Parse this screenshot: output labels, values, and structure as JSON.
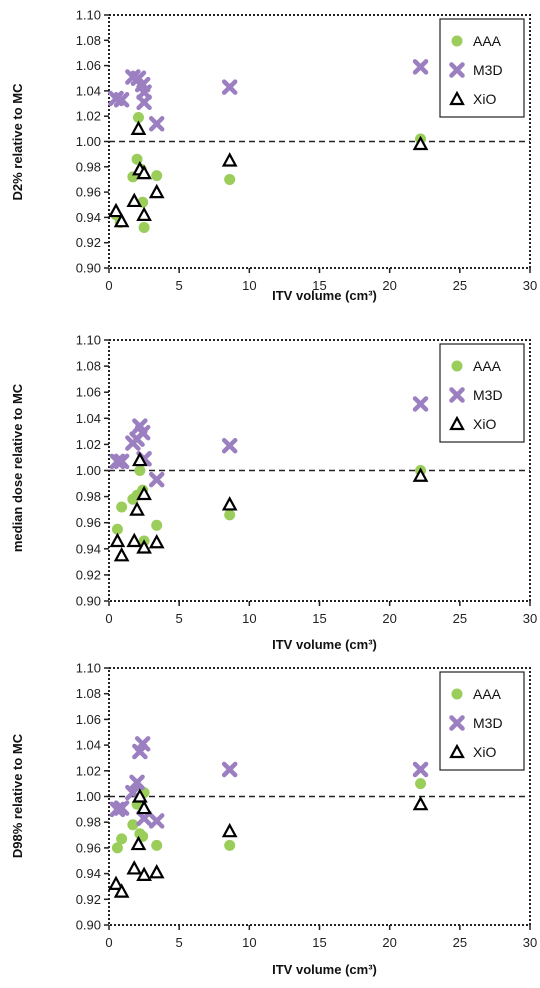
{
  "chart_data": [
    {
      "type": "scatter",
      "ylabel": "D2% relative to MC",
      "xlabel": "ITV volume (cm³)",
      "xlim": [
        0,
        30
      ],
      "ylim": [
        0.9,
        1.1
      ],
      "xticks": [
        "0",
        "5",
        "10",
        "15",
        "20",
        "25",
        "30"
      ],
      "yticks": [
        "0.90",
        "0.92",
        "0.94",
        "0.96",
        "0.98",
        "1.00",
        "1.02",
        "1.04",
        "1.06",
        "1.08",
        "1.10"
      ],
      "reference_line": 1.0,
      "grid": false,
      "legend_position": "top-right",
      "series": [
        {
          "name": "AAA",
          "marker": "circle",
          "color": "#9acd5a",
          "points": [
            [
              0.5,
              0.942
            ],
            [
              0.8,
              0.936
            ],
            [
              1.7,
              0.972
            ],
            [
              2.0,
              0.986
            ],
            [
              2.1,
              1.019
            ],
            [
              2.3,
              0.978
            ],
            [
              2.4,
              0.952
            ],
            [
              2.5,
              0.932
            ],
            [
              3.4,
              0.973
            ],
            [
              8.6,
              0.97
            ],
            [
              22.2,
              1.002
            ]
          ]
        },
        {
          "name": "M3D",
          "marker": "x",
          "color": "#9b7fc0",
          "points": [
            [
              0.5,
              1.034
            ],
            [
              0.9,
              1.033
            ],
            [
              1.7,
              1.051
            ],
            [
              2.1,
              1.05
            ],
            [
              2.4,
              1.045
            ],
            [
              2.5,
              1.039
            ],
            [
              2.5,
              1.031
            ],
            [
              3.4,
              1.014
            ],
            [
              8.6,
              1.043
            ],
            [
              22.2,
              1.059
            ]
          ]
        },
        {
          "name": "XiO",
          "marker": "triangle",
          "color": "#000000",
          "points": [
            [
              0.5,
              0.945
            ],
            [
              0.9,
              0.937
            ],
            [
              1.8,
              0.953
            ],
            [
              2.1,
              1.01
            ],
            [
              2.2,
              0.978
            ],
            [
              2.5,
              0.975
            ],
            [
              2.5,
              0.942
            ],
            [
              3.4,
              0.96
            ],
            [
              8.6,
              0.985
            ],
            [
              22.2,
              0.998
            ]
          ]
        }
      ]
    },
    {
      "type": "scatter",
      "ylabel": "median dose relative to MC",
      "xlabel": "ITV volume (cm³)",
      "xlim": [
        0,
        30
      ],
      "ylim": [
        0.9,
        1.1
      ],
      "xticks": [
        "0",
        "5",
        "10",
        "15",
        "20",
        "25",
        "30"
      ],
      "yticks": [
        "0.90",
        "0.92",
        "0.94",
        "0.96",
        "0.98",
        "1.00",
        "1.02",
        "1.04",
        "1.06",
        "1.08",
        "1.10"
      ],
      "reference_line": 1.0,
      "grid": false,
      "legend_position": "top-right",
      "series": [
        {
          "name": "AAA",
          "marker": "circle",
          "color": "#9acd5a",
          "points": [
            [
              0.6,
              0.955
            ],
            [
              0.9,
              0.972
            ],
            [
              1.7,
              0.978
            ],
            [
              2.0,
              0.981
            ],
            [
              2.2,
              1.0
            ],
            [
              2.4,
              0.985
            ],
            [
              2.5,
              0.946
            ],
            [
              3.4,
              0.958
            ],
            [
              8.6,
              0.966
            ],
            [
              22.2,
              1.0
            ]
          ]
        },
        {
          "name": "M3D",
          "marker": "x",
          "color": "#9b7fc0",
          "points": [
            [
              0.6,
              1.007
            ],
            [
              0.9,
              1.007
            ],
            [
              1.7,
              1.021
            ],
            [
              2.0,
              1.024
            ],
            [
              2.2,
              1.034
            ],
            [
              2.4,
              1.029
            ],
            [
              2.5,
              1.009
            ],
            [
              3.4,
              0.993
            ],
            [
              8.6,
              1.019
            ],
            [
              22.2,
              1.051
            ]
          ]
        },
        {
          "name": "XiO",
          "marker": "triangle",
          "color": "#000000",
          "points": [
            [
              0.6,
              0.946
            ],
            [
              0.9,
              0.935
            ],
            [
              1.8,
              0.946
            ],
            [
              2.0,
              0.97
            ],
            [
              2.2,
              1.008
            ],
            [
              2.5,
              0.982
            ],
            [
              2.5,
              0.941
            ],
            [
              3.4,
              0.945
            ],
            [
              8.6,
              0.974
            ],
            [
              22.2,
              0.996
            ]
          ]
        }
      ]
    },
    {
      "type": "scatter",
      "ylabel": "D98% relative to MC",
      "xlabel": "ITV volume (cm³)",
      "xlim": [
        0,
        30
      ],
      "ylim": [
        0.9,
        1.1
      ],
      "xticks": [
        "0",
        "5",
        "10",
        "15",
        "20",
        "25",
        "30"
      ],
      "yticks": [
        "0.90",
        "0.92",
        "0.94",
        "0.96",
        "0.98",
        "1.00",
        "1.02",
        "1.04",
        "1.06",
        "1.08",
        "1.10"
      ],
      "reference_line": 1.0,
      "grid": false,
      "legend_position": "top-right",
      "series": [
        {
          "name": "AAA",
          "marker": "circle",
          "color": "#9acd5a",
          "points": [
            [
              0.6,
              0.96
            ],
            [
              0.9,
              0.967
            ],
            [
              1.7,
              0.978
            ],
            [
              2.0,
              0.994
            ],
            [
              2.2,
              0.971
            ],
            [
              2.4,
              0.969
            ],
            [
              2.5,
              1.003
            ],
            [
              3.4,
              0.962
            ],
            [
              8.6,
              0.962
            ],
            [
              22.2,
              1.01
            ]
          ]
        },
        {
          "name": "M3D",
          "marker": "x",
          "color": "#9b7fc0",
          "points": [
            [
              0.6,
              0.99
            ],
            [
              0.9,
              0.991
            ],
            [
              1.7,
              1.003
            ],
            [
              2.0,
              1.011
            ],
            [
              2.2,
              1.035
            ],
            [
              2.4,
              1.041
            ],
            [
              2.5,
              0.983
            ],
            [
              3.4,
              0.981
            ],
            [
              8.6,
              1.021
            ],
            [
              22.2,
              1.021
            ]
          ]
        },
        {
          "name": "XiO",
          "marker": "triangle",
          "color": "#000000",
          "points": [
            [
              0.5,
              0.932
            ],
            [
              0.9,
              0.926
            ],
            [
              1.8,
              0.944
            ],
            [
              2.1,
              0.963
            ],
            [
              2.2,
              1.0
            ],
            [
              2.5,
              0.991
            ],
            [
              2.5,
              0.939
            ],
            [
              3.4,
              0.941
            ],
            [
              8.6,
              0.973
            ],
            [
              22.2,
              0.994
            ]
          ]
        }
      ]
    }
  ]
}
